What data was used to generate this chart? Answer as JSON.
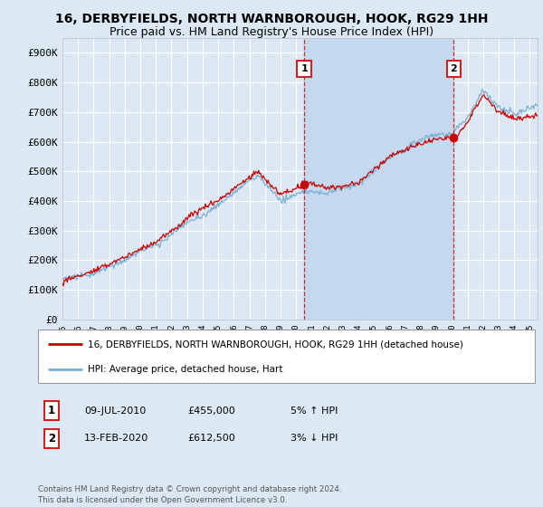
{
  "title": "16, DERBYFIELDS, NORTH WARNBOROUGH, HOOK, RG29 1HH",
  "subtitle": "Price paid vs. HM Land Registry's House Price Index (HPI)",
  "ylim": [
    0,
    950000
  ],
  "yticks": [
    0,
    100000,
    200000,
    300000,
    400000,
    500000,
    600000,
    700000,
    800000,
    900000
  ],
  "ytick_labels": [
    "£0",
    "£100K",
    "£200K",
    "£300K",
    "£400K",
    "£500K",
    "£600K",
    "£700K",
    "£800K",
    "£900K"
  ],
  "xlim_start": 1995,
  "xlim_end": 2025.5,
  "background_color": "#dce9f5",
  "plot_bg_color": "#dce9f5",
  "shade_color": "#c5d9ee",
  "grid_color": "#ffffff",
  "legend_entry1": "16, DERBYFIELDS, NORTH WARNBOROUGH, HOOK, RG29 1HH (detached house)",
  "legend_entry2": "HPI: Average price, detached house, Hart",
  "sale1_label": "1",
  "sale1_date": "09-JUL-2010",
  "sale1_price": "£455,000",
  "sale1_pct": "5% ↑ HPI",
  "sale1_x": 2010.52,
  "sale1_y": 455000,
  "sale2_label": "2",
  "sale2_date": "13-FEB-2020",
  "sale2_price": "£612,500",
  "sale2_pct": "3% ↓ HPI",
  "sale2_x": 2020.12,
  "sale2_y": 612500,
  "vline1_x": 2010.52,
  "vline2_x": 2020.12,
  "line1_color": "#cc0000",
  "line2_color": "#7bafd4",
  "vline_color": "#cc0000",
  "footer": "Contains HM Land Registry data © Crown copyright and database right 2024.\nThis data is licensed under the Open Government Licence v3.0.",
  "title_fontsize": 10,
  "subtitle_fontsize": 9
}
